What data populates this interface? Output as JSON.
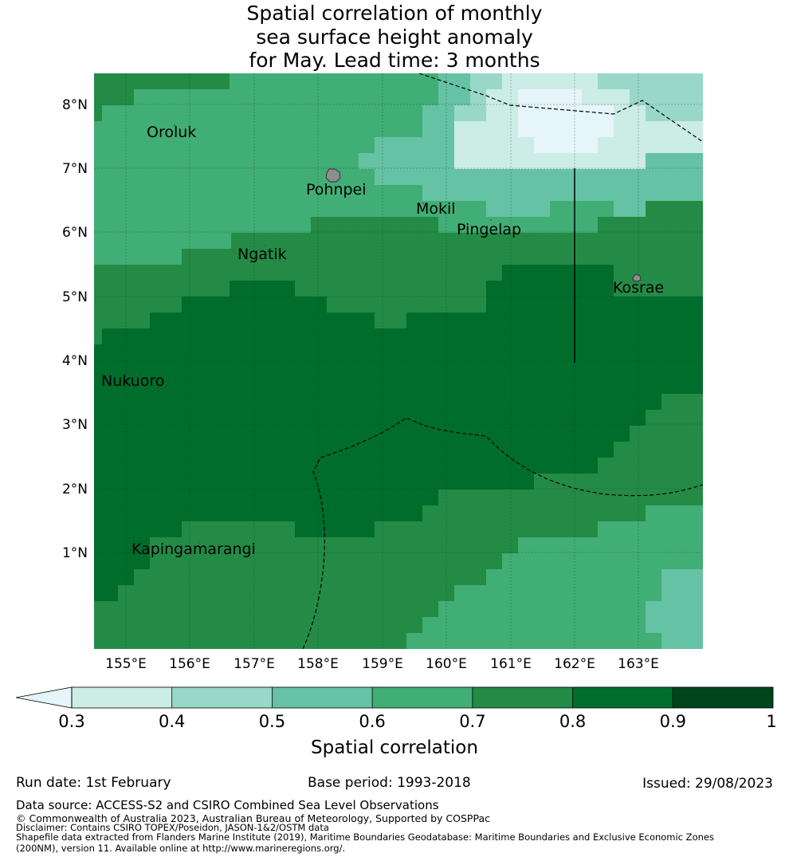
{
  "title": {
    "line1": "Spatial correlation of monthly",
    "line2": "sea surface height anomaly",
    "line3": "for May. Lead time: 3 months"
  },
  "map": {
    "lon_labels": [
      "155°E",
      "156°E",
      "157°E",
      "158°E",
      "159°E",
      "160°E",
      "161°E",
      "162°E",
      "163°E"
    ],
    "lat_labels": [
      "8°N",
      "7°N",
      "6°N",
      "5°N",
      "4°N",
      "3°N",
      "2°N",
      "1°N"
    ],
    "places": [
      {
        "name": "Oroluk"
      },
      {
        "name": "Pohnpei"
      },
      {
        "name": "Mokil"
      },
      {
        "name": "Pingelap"
      },
      {
        "name": "Ngatik"
      },
      {
        "name": "Kosrae"
      },
      {
        "name": "Nukuoro"
      },
      {
        "name": "Kapingamarangi"
      }
    ]
  },
  "colorbar": {
    "label": "Spatial correlation",
    "ticks": [
      "0.3",
      "0.4",
      "0.5",
      "0.6",
      "0.7",
      "0.8",
      "0.9",
      "1"
    ],
    "colors": [
      "#e5f5f9",
      "#ccece6",
      "#99d8c9",
      "#66c2a4",
      "#41ae76",
      "#238b45",
      "#006d2c",
      "#00441b"
    ]
  },
  "footer": {
    "run_date": "Run date: 1st February",
    "base_period": "Base period: 1993-2018",
    "issued": "Issued: 29/08/2023",
    "data_source": "Data source: ACCESS-S2 and CSIRO Combined Sea Level Observations",
    "copyright": "© Commonwealth of Australia 2023, Australian Bureau of Meteorology, Supported by COSPPac",
    "disclaimer": "Disclaimer: Contains CSIRO TOPEX/Poseidon, JASON-1&2/OSTM data",
    "shapefile_line1": "Shapefile data extracted from Flanders Marine Institute (2019), Maritime Boundaries Geodatabase: Maritime Boundaries and Exclusive Economic Zones",
    "shapefile_line2": "(200NM), version 11. Available online at http://www.marineregions.org/."
  }
}
